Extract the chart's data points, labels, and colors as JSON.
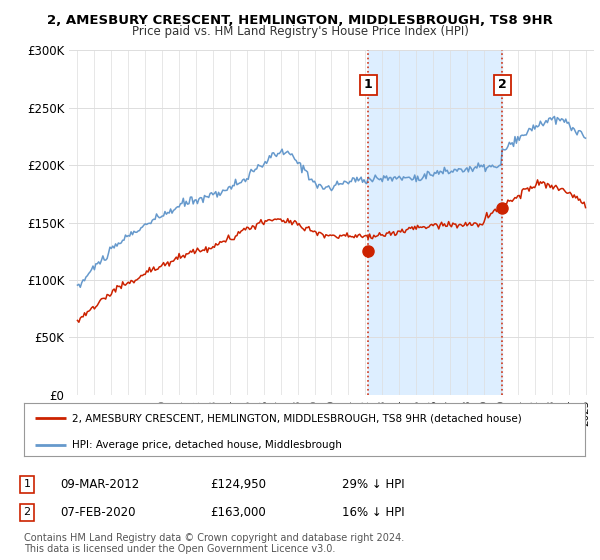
{
  "title_line1": "2, AMESBURY CRESCENT, HEMLINGTON, MIDDLESBROUGH, TS8 9HR",
  "title_line2": "Price paid vs. HM Land Registry's House Price Index (HPI)",
  "bg_color": "#ffffff",
  "plot_bg_color": "#ffffff",
  "shade_color": "#ddeeff",
  "hpi_color": "#6699cc",
  "price_color": "#cc2200",
  "dashed_color": "#cc2200",
  "marker1_year": 2012.18,
  "marker2_year": 2020.09,
  "marker1_price": 124950,
  "marker2_price": 163000,
  "ylim_min": 0,
  "ylim_max": 300000,
  "yticks": [
    0,
    50000,
    100000,
    150000,
    200000,
    250000,
    300000
  ],
  "ytick_labels": [
    "£0",
    "£50K",
    "£100K",
    "£150K",
    "£200K",
    "£250K",
    "£300K"
  ],
  "legend_line1": "2, AMESBURY CRESCENT, HEMLINGTON, MIDDLESBROUGH, TS8 9HR (detached house)",
  "legend_line2": "HPI: Average price, detached house, Middlesbrough",
  "note1_label": "1",
  "note1_date": "09-MAR-2012",
  "note1_price": "£124,950",
  "note1_hpi": "29% ↓ HPI",
  "note2_label": "2",
  "note2_date": "07-FEB-2020",
  "note2_price": "£163,000",
  "note2_hpi": "16% ↓ HPI",
  "footer": "Contains HM Land Registry data © Crown copyright and database right 2024.\nThis data is licensed under the Open Government Licence v3.0."
}
